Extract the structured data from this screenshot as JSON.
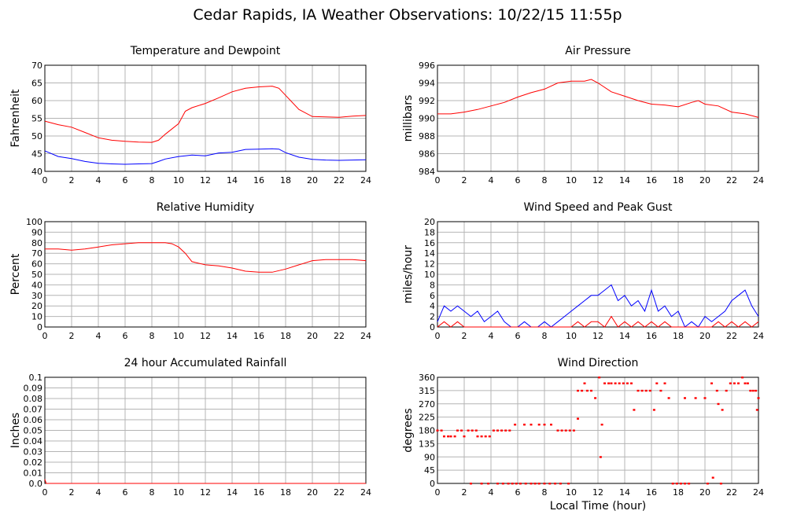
{
  "figure": {
    "title": "Cedar Rapids, IA Weather Observations: 10/22/15 11:55p",
    "xlabel": "Local Time (hour)"
  },
  "colors": {
    "red": "#ff0000",
    "blue": "#0000ff"
  },
  "chart_data": [
    {
      "type": "line",
      "title": "Temperature and Dewpoint",
      "ylabel": "Fahrenheit",
      "xlim": [
        0,
        24
      ],
      "ylim": [
        40,
        70
      ],
      "xticks": [
        "0",
        "2",
        "4",
        "6",
        "8",
        "10",
        "12",
        "14",
        "16",
        "18",
        "20",
        "22",
        "24"
      ],
      "yticks": [
        "40",
        "45",
        "50",
        "55",
        "60",
        "65",
        "70"
      ],
      "grid": true,
      "x": [
        0,
        1,
        2,
        3,
        4,
        5,
        6,
        7,
        8,
        8.5,
        9,
        10,
        10.5,
        11,
        12,
        13,
        14,
        15,
        16,
        17,
        17.5,
        18,
        19,
        20,
        21,
        22,
        23,
        24
      ],
      "series": [
        {
          "color": "#ff0000",
          "values": [
            54.2,
            53.2,
            52.5,
            51.0,
            49.5,
            48.8,
            48.5,
            48.3,
            48.2,
            48.8,
            50.5,
            53.5,
            57.0,
            58.0,
            59.2,
            60.8,
            62.5,
            63.5,
            63.9,
            64.1,
            63.5,
            61.5,
            57.5,
            55.5,
            55.4,
            55.3,
            55.6,
            55.8
          ]
        },
        {
          "color": "#0000ff",
          "values": [
            45.8,
            44.2,
            43.6,
            42.8,
            42.3,
            42.1,
            42.0,
            42.1,
            42.2,
            42.8,
            43.5,
            44.2,
            44.4,
            44.6,
            44.4,
            45.2,
            45.4,
            46.2,
            46.3,
            46.4,
            46.3,
            45.3,
            44.0,
            43.4,
            43.2,
            43.1,
            43.2,
            43.3
          ]
        }
      ]
    },
    {
      "type": "line",
      "title": "Air Pressure",
      "ylabel": "millibars",
      "xlim": [
        0,
        24
      ],
      "ylim": [
        984,
        996
      ],
      "xticks": [
        "0",
        "2",
        "4",
        "6",
        "8",
        "10",
        "12",
        "14",
        "16",
        "18",
        "20",
        "22",
        "24"
      ],
      "yticks": [
        "984",
        "986",
        "988",
        "990",
        "992",
        "994",
        "996"
      ],
      "grid": true,
      "x": [
        0,
        1,
        2,
        3,
        4,
        5,
        6,
        7,
        8,
        9,
        10,
        11,
        11.5,
        12,
        13,
        14,
        15,
        16,
        17,
        18,
        19,
        19.5,
        20,
        21,
        22,
        23,
        24
      ],
      "series": [
        {
          "color": "#ff0000",
          "values": [
            990.5,
            990.5,
            990.7,
            991.0,
            991.4,
            991.8,
            992.4,
            992.9,
            993.3,
            994.0,
            994.2,
            994.2,
            994.4,
            994.0,
            993.0,
            992.5,
            992.0,
            991.6,
            991.5,
            991.3,
            991.8,
            992.0,
            991.6,
            991.4,
            990.7,
            990.5,
            990.1
          ]
        }
      ]
    },
    {
      "type": "line",
      "title": "Relative Humidity",
      "ylabel": "Percent",
      "xlim": [
        0,
        24
      ],
      "ylim": [
        0,
        100
      ],
      "xticks": [
        "0",
        "2",
        "4",
        "6",
        "8",
        "10",
        "12",
        "14",
        "16",
        "18",
        "20",
        "22",
        "24"
      ],
      "yticks": [
        "0",
        "10",
        "20",
        "30",
        "40",
        "50",
        "60",
        "70",
        "80",
        "90",
        "100"
      ],
      "grid": true,
      "x": [
        0,
        1,
        2,
        3,
        4,
        5,
        6,
        7,
        8,
        9,
        9.5,
        10,
        10.5,
        11,
        12,
        13,
        14,
        15,
        16,
        17,
        18,
        19,
        20,
        21,
        22,
        23,
        24
      ],
      "series": [
        {
          "color": "#ff0000",
          "values": [
            74,
            74,
            73,
            74,
            76,
            78,
            79,
            80,
            80,
            80,
            79,
            76,
            70,
            62,
            59,
            58,
            56,
            53,
            52,
            52,
            55,
            59,
            63,
            64,
            64,
            64,
            63
          ]
        }
      ]
    },
    {
      "type": "line",
      "title": "Wind Speed and Peak Gust",
      "ylabel": "miles/hour",
      "xlim": [
        0,
        24
      ],
      "ylim": [
        0,
        20
      ],
      "xticks": [
        "0",
        "2",
        "4",
        "6",
        "8",
        "10",
        "12",
        "14",
        "16",
        "18",
        "20",
        "22",
        "24"
      ],
      "yticks": [
        "0",
        "2",
        "4",
        "6",
        "8",
        "10",
        "12",
        "14",
        "16",
        "18",
        "20"
      ],
      "grid": true,
      "x": [
        0,
        0.5,
        1,
        1.5,
        2,
        2.5,
        3,
        3.5,
        4,
        4.5,
        5,
        5.5,
        6,
        6.5,
        7,
        7.5,
        8,
        8.5,
        9,
        9.5,
        10,
        10.5,
        11,
        11.5,
        12,
        12.5,
        13,
        13.5,
        14,
        14.5,
        15,
        15.5,
        16,
        16.5,
        17,
        17.5,
        18,
        18.5,
        19,
        19.5,
        20,
        20.5,
        21,
        21.5,
        22,
        22.5,
        23,
        23.5,
        24
      ],
      "series": [
        {
          "color": "#0000ff",
          "values": [
            1,
            4,
            3,
            4,
            3,
            2,
            3,
            1,
            2,
            3,
            1,
            0,
            0,
            1,
            0,
            0,
            1,
            0,
            1,
            2,
            3,
            4,
            5,
            6,
            6,
            7,
            8,
            5,
            6,
            4,
            5,
            3,
            7,
            3,
            4,
            2,
            3,
            0,
            1,
            0,
            2,
            1,
            2,
            3,
            5,
            6,
            7,
            4,
            2
          ]
        },
        {
          "color": "#ff0000",
          "values": [
            0,
            1,
            0,
            1,
            0,
            0,
            0,
            0,
            0,
            0,
            0,
            0,
            0,
            0,
            0,
            0,
            0,
            0,
            0,
            0,
            0,
            1,
            0,
            1,
            1,
            0,
            2,
            0,
            1,
            0,
            1,
            0,
            1,
            0,
            1,
            0,
            0,
            0,
            0,
            0,
            0,
            0,
            1,
            0,
            1,
            0,
            1,
            0,
            1
          ]
        }
      ]
    },
    {
      "type": "line",
      "title": "24 hour Accumulated Rainfall",
      "ylabel": "Inches",
      "xlim": [
        0,
        24
      ],
      "ylim": [
        0,
        0.1
      ],
      "xticks": [
        "0",
        "2",
        "4",
        "6",
        "8",
        "10",
        "12",
        "14",
        "16",
        "18",
        "20",
        "22",
        "24"
      ],
      "yticks": [
        "0.0",
        "0.01",
        "0.02",
        "0.03",
        "0.04",
        "0.05",
        "0.06",
        "0.07",
        "0.08",
        "0.09",
        "0.1"
      ],
      "grid": true,
      "x": [
        0,
        0.1,
        24
      ],
      "series": [
        {
          "color": "#ff0000",
          "values": [
            0.004,
            0,
            0
          ]
        }
      ]
    },
    {
      "type": "scatter",
      "title": "Wind Direction",
      "ylabel": "degrees",
      "xlim": [
        0,
        24
      ],
      "ylim": [
        0,
        360
      ],
      "xticks": [
        "0",
        "2",
        "4",
        "6",
        "8",
        "10",
        "12",
        "14",
        "16",
        "18",
        "20",
        "22",
        "24"
      ],
      "yticks": [
        "0",
        "45",
        "90",
        "135",
        "180",
        "225",
        "270",
        "315",
        "360"
      ],
      "grid": true,
      "series": [
        {
          "color": "#ff0000",
          "points": [
            [
              0.0,
              180
            ],
            [
              0.3,
              180
            ],
            [
              0.5,
              160
            ],
            [
              0.8,
              160
            ],
            [
              1.0,
              160
            ],
            [
              1.3,
              160
            ],
            [
              1.5,
              180
            ],
            [
              1.8,
              180
            ],
            [
              2.0,
              160
            ],
            [
              2.3,
              180
            ],
            [
              2.6,
              180
            ],
            [
              2.9,
              180
            ],
            [
              3.0,
              160
            ],
            [
              3.3,
              160
            ],
            [
              3.6,
              160
            ],
            [
              3.9,
              160
            ],
            [
              4.2,
              180
            ],
            [
              4.5,
              180
            ],
            [
              4.8,
              180
            ],
            [
              5.1,
              180
            ],
            [
              5.4,
              180
            ],
            [
              2.5,
              0
            ],
            [
              3.3,
              0
            ],
            [
              3.8,
              0
            ],
            [
              4.5,
              0
            ],
            [
              4.9,
              0
            ],
            [
              5.3,
              0
            ],
            [
              5.6,
              0
            ],
            [
              5.9,
              0
            ],
            [
              6.2,
              0
            ],
            [
              6.6,
              0
            ],
            [
              7.0,
              0
            ],
            [
              7.3,
              0
            ],
            [
              7.6,
              0
            ],
            [
              8.0,
              0
            ],
            [
              8.4,
              0
            ],
            [
              8.8,
              0
            ],
            [
              9.2,
              0
            ],
            [
              9.8,
              0
            ],
            [
              5.8,
              200
            ],
            [
              6.5,
              200
            ],
            [
              7.0,
              200
            ],
            [
              7.6,
              200
            ],
            [
              8.0,
              200
            ],
            [
              8.5,
              200
            ],
            [
              9.0,
              180
            ],
            [
              9.3,
              180
            ],
            [
              9.6,
              180
            ],
            [
              9.9,
              180
            ],
            [
              10.2,
              180
            ],
            [
              10.5,
              220
            ],
            [
              10.5,
              315
            ],
            [
              10.8,
              315
            ],
            [
              11.0,
              340
            ],
            [
              11.2,
              315
            ],
            [
              11.5,
              315
            ],
            [
              11.8,
              290
            ],
            [
              12.1,
              360
            ],
            [
              12.2,
              90
            ],
            [
              12.3,
              200
            ],
            [
              12.5,
              340
            ],
            [
              12.8,
              340
            ],
            [
              13.0,
              340
            ],
            [
              13.3,
              340
            ],
            [
              13.6,
              340
            ],
            [
              13.9,
              340
            ],
            [
              14.2,
              340
            ],
            [
              14.5,
              340
            ],
            [
              14.7,
              250
            ],
            [
              15.0,
              315
            ],
            [
              15.3,
              315
            ],
            [
              15.6,
              315
            ],
            [
              15.9,
              315
            ],
            [
              16.2,
              250
            ],
            [
              16.4,
              340
            ],
            [
              16.7,
              315
            ],
            [
              17.0,
              340
            ],
            [
              17.3,
              290
            ],
            [
              17.6,
              0
            ],
            [
              17.9,
              0
            ],
            [
              18.2,
              0
            ],
            [
              18.5,
              0
            ],
            [
              18.8,
              0
            ],
            [
              18.5,
              290
            ],
            [
              19.3,
              290
            ],
            [
              20.0,
              290
            ],
            [
              20.2,
              0
            ],
            [
              20.5,
              340
            ],
            [
              20.6,
              20
            ],
            [
              20.9,
              315
            ],
            [
              21.0,
              270
            ],
            [
              21.2,
              0
            ],
            [
              21.3,
              250
            ],
            [
              21.6,
              315
            ],
            [
              21.9,
              340
            ],
            [
              22.2,
              340
            ],
            [
              22.5,
              340
            ],
            [
              22.8,
              360
            ],
            [
              23.0,
              340
            ],
            [
              23.2,
              340
            ],
            [
              23.4,
              315
            ],
            [
              23.6,
              315
            ],
            [
              23.8,
              315
            ],
            [
              23.9,
              250
            ],
            [
              24.0,
              290
            ]
          ]
        }
      ]
    }
  ]
}
